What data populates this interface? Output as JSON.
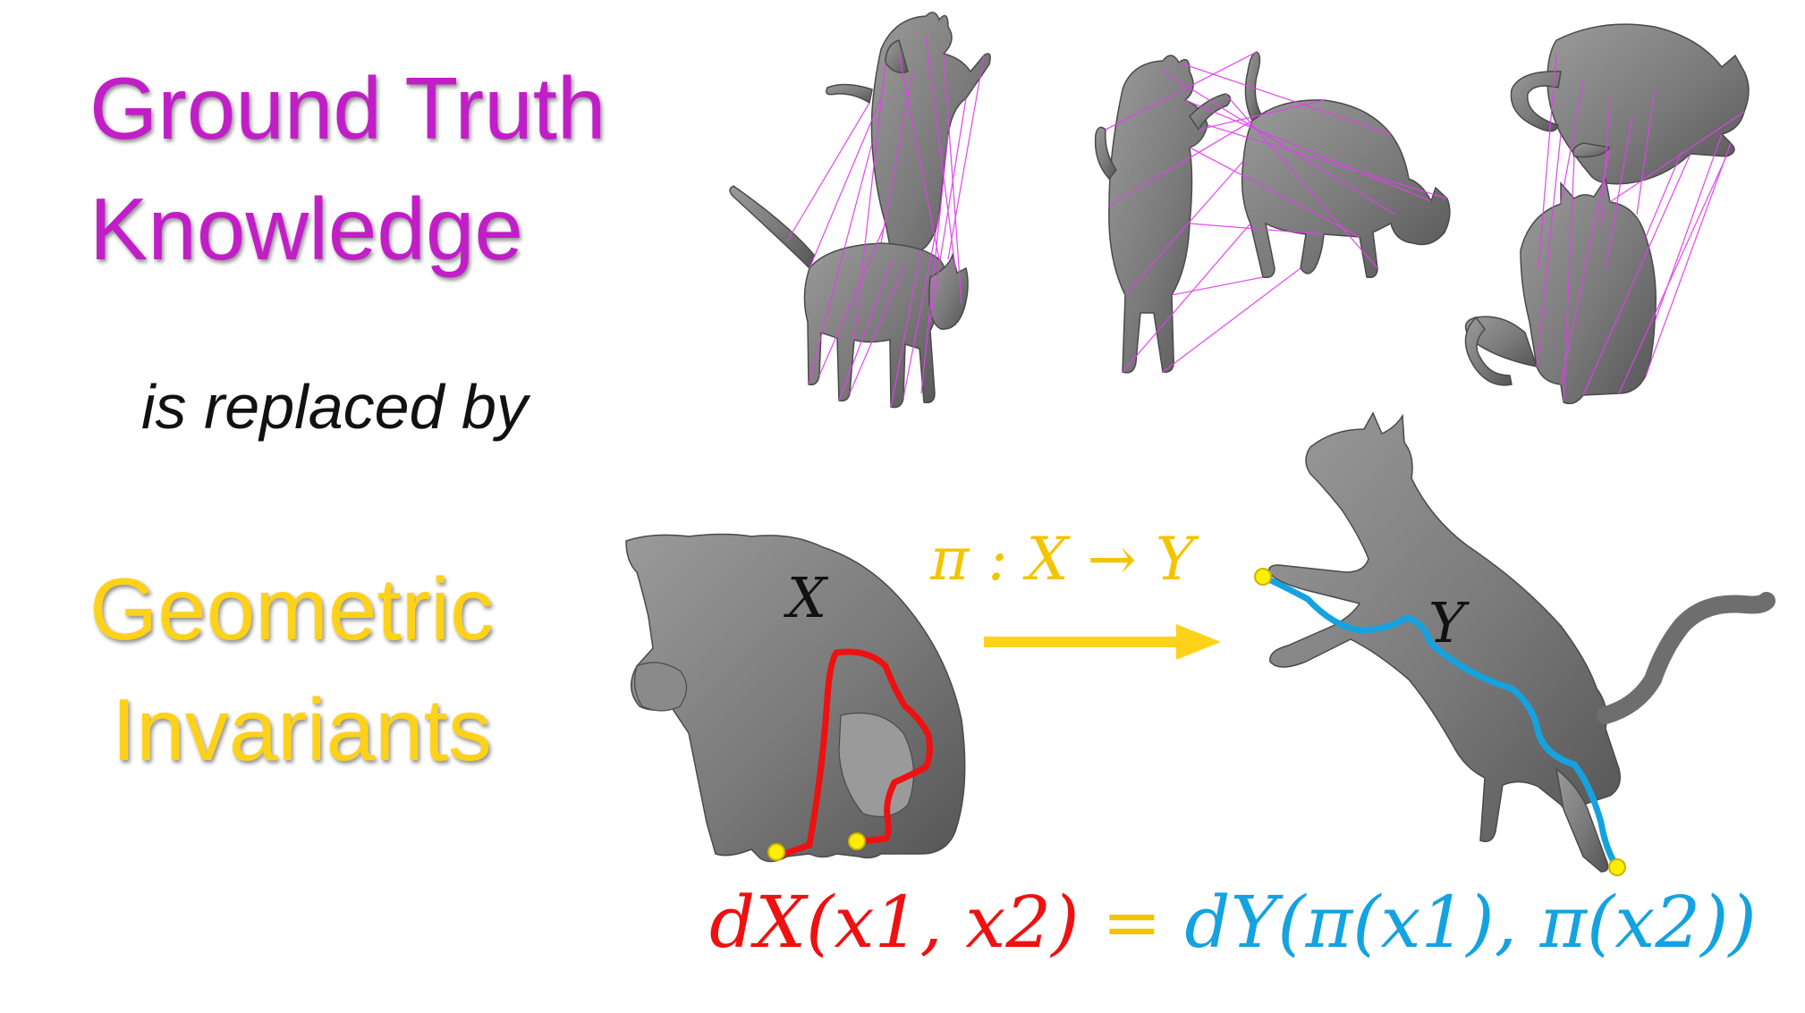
{
  "headings": {
    "ground_truth_line1": "Ground Truth",
    "ground_truth_line2": "Knowledge",
    "replaced_by": "is replaced by",
    "geometric_line1": "Geometric",
    "geometric_line2": "Invariants"
  },
  "math": {
    "mapping": "π : X → Y",
    "label_x": "X",
    "label_y": "Y",
    "equation_left": "dX(x1, x2)",
    "equation_equals": "=",
    "equation_right": "dY(π(x1), π(x2))"
  },
  "colors": {
    "ground_truth": "#c21ec8",
    "geometric": "#ffd21a",
    "red_path": "#ee1111",
    "blue_path": "#14a3e0",
    "shape": "#7c7c7c",
    "correspondence_lines": "#e040ec"
  }
}
